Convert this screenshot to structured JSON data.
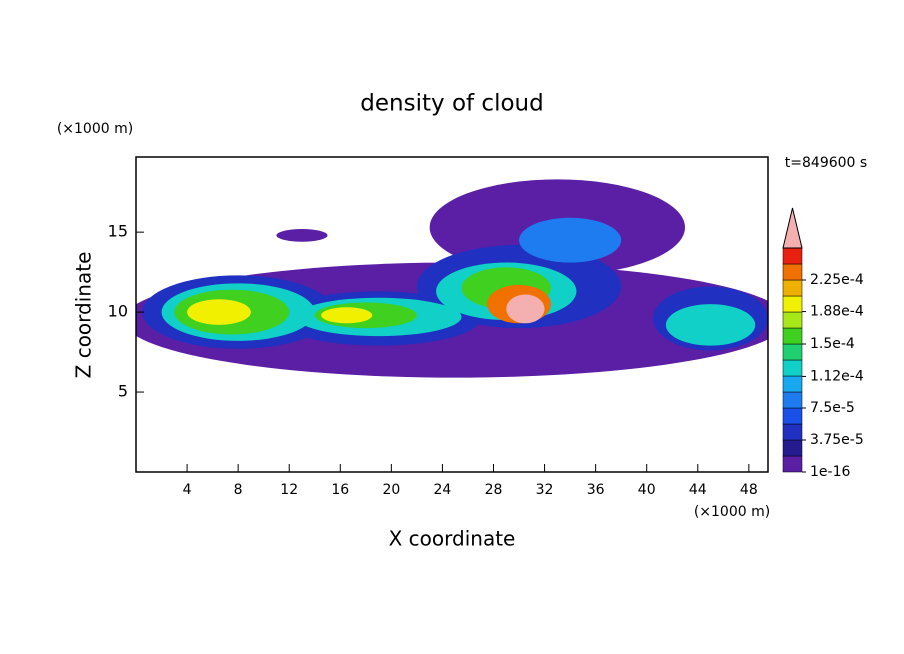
{
  "chart_data": {
    "type": "contour",
    "title": "density of cloud",
    "x_label": "X coordinate",
    "y_label": "Z coordinate",
    "x_unit": "(×1000 m)",
    "y_unit": "(×1000 m)",
    "annotation": "t=849600 s",
    "xlim": [
      0,
      49.5
    ],
    "ylim": [
      0,
      19.7
    ],
    "xticks": [
      4,
      8,
      12,
      16,
      20,
      24,
      28,
      32,
      36,
      40,
      44,
      48
    ],
    "yticks": [
      5,
      10,
      15
    ],
    "colorbar": {
      "levels": [
        0,
        1.875e-05,
        3.75e-05,
        5.625e-05,
        7.5e-05,
        9.375e-05,
        0.0001125,
        0.00013125,
        0.00015,
        0.00016875,
        0.0001875,
        0.00020625,
        0.000225,
        0.00024375,
        0.0002625
      ],
      "colors": [
        "#5b1fa5",
        "#251a90",
        "#2030c0",
        "#1a50e8",
        "#1e7cf0",
        "#18a8f0",
        "#10d0c8",
        "#20d070",
        "#40d020",
        "#a8e818",
        "#f0f000",
        "#f0b000",
        "#f07000",
        "#e82010"
      ],
      "extend_color": "#f4b0b0",
      "ticks": [
        {
          "value": 1e-16,
          "label": "1e-16"
        },
        {
          "value": 3.75e-05,
          "label": "3.75e-5"
        },
        {
          "value": 7.5e-05,
          "label": "7.5e-5"
        },
        {
          "value": 0.000112,
          "label": "1.12e-4"
        },
        {
          "value": 0.00015,
          "label": "1.5e-4"
        },
        {
          "value": 0.000188,
          "label": "1.88e-4"
        },
        {
          "value": 0.000225,
          "label": "2.25e-4"
        }
      ]
    },
    "blobs": [
      {
        "x": 25,
        "z": 9.5,
        "rx": 26,
        "rz": 3.6,
        "level": 1e-16
      },
      {
        "x": 33,
        "z": 15.3,
        "rx": 10,
        "rz": 3,
        "level": 1e-16
      },
      {
        "x": 13,
        "z": 14.8,
        "rx": 2,
        "rz": 0.4,
        "level": 1e-16
      },
      {
        "x": 8,
        "z": 10,
        "rx": 7.5,
        "rz": 2.3,
        "level": 4e-05
      },
      {
        "x": 19,
        "z": 9.6,
        "rx": 8,
        "rz": 1.7,
        "level": 4e-05
      },
      {
        "x": 30,
        "z": 11.6,
        "rx": 8,
        "rz": 2.6,
        "level": 4e-05
      },
      {
        "x": 45,
        "z": 9.6,
        "rx": 4.5,
        "rz": 2,
        "level": 4e-05
      },
      {
        "x": 34,
        "z": 14.5,
        "rx": 4,
        "rz": 1.4,
        "level": 8e-05
      },
      {
        "x": 8,
        "z": 10,
        "rx": 6,
        "rz": 1.8,
        "level": 0.00012
      },
      {
        "x": 19,
        "z": 9.7,
        "rx": 6.5,
        "rz": 1.2,
        "level": 0.00012
      },
      {
        "x": 29,
        "z": 11.3,
        "rx": 5.5,
        "rz": 1.8,
        "level": 0.00012
      },
      {
        "x": 45,
        "z": 9.2,
        "rx": 3.5,
        "rz": 1.3,
        "level": 0.00012
      },
      {
        "x": 7.5,
        "z": 10,
        "rx": 4.5,
        "rz": 1.4,
        "level": 0.00016
      },
      {
        "x": 18,
        "z": 9.8,
        "rx": 4,
        "rz": 0.8,
        "level": 0.00016
      },
      {
        "x": 29,
        "z": 11.5,
        "rx": 3.5,
        "rz": 1.3,
        "level": 0.00016
      },
      {
        "x": 6.5,
        "z": 10,
        "rx": 2.5,
        "rz": 0.8,
        "level": 0.0002
      },
      {
        "x": 16.5,
        "z": 9.8,
        "rx": 2,
        "rz": 0.5,
        "level": 0.0002
      },
      {
        "x": 30,
        "z": 10.5,
        "rx": 2.5,
        "rz": 1.2,
        "level": 0.00024
      },
      {
        "x": 30.5,
        "z": 10.2,
        "rx": 1.5,
        "rz": 0.9,
        "level": 0.00028
      }
    ]
  }
}
